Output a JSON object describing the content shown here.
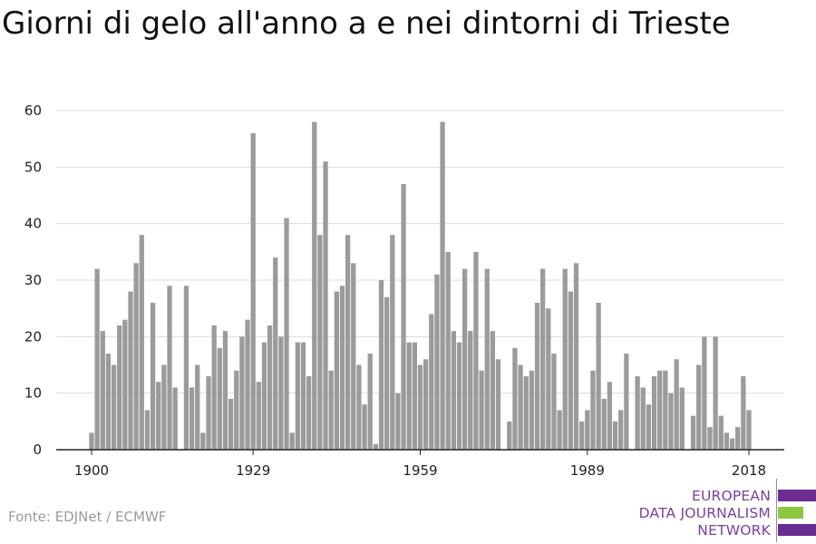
{
  "title": "Giorni di gelo all'anno a e nei dintorni di Trieste",
  "source": "Fonte: EDJNet / ECMWF",
  "logo": {
    "line1": "EUROPEAN",
    "line2": "DATA JOURNALISM",
    "line3": "NETWORK",
    "colors": {
      "purple": "#6b2d91",
      "green": "#8dc63f"
    }
  },
  "chart_data": {
    "type": "bar",
    "bar_color": "#9b9b9b",
    "gridline_color": "#dcdcdc",
    "x_ticks": [
      "1900",
      "1929",
      "1959",
      "1989",
      "2018"
    ],
    "y_ticks": [
      "0",
      "10",
      "20",
      "30",
      "40",
      "50",
      "60"
    ],
    "ylim": [
      0,
      60
    ],
    "xlim": [
      1900,
      2018
    ],
    "x": [
      1900,
      1901,
      1902,
      1903,
      1904,
      1905,
      1906,
      1907,
      1908,
      1909,
      1910,
      1911,
      1912,
      1913,
      1914,
      1915,
      1916,
      1917,
      1918,
      1919,
      1920,
      1921,
      1922,
      1923,
      1924,
      1925,
      1926,
      1927,
      1928,
      1929,
      1930,
      1931,
      1932,
      1933,
      1934,
      1935,
      1936,
      1937,
      1938,
      1939,
      1940,
      1941,
      1942,
      1943,
      1944,
      1945,
      1946,
      1947,
      1948,
      1949,
      1950,
      1951,
      1952,
      1953,
      1954,
      1955,
      1956,
      1957,
      1958,
      1959,
      1960,
      1961,
      1962,
      1963,
      1964,
      1965,
      1966,
      1967,
      1968,
      1969,
      1970,
      1971,
      1972,
      1973,
      1974,
      1975,
      1976,
      1977,
      1978,
      1979,
      1980,
      1981,
      1982,
      1983,
      1984,
      1985,
      1986,
      1987,
      1988,
      1989,
      1990,
      1991,
      1992,
      1993,
      1994,
      1995,
      1996,
      1997,
      1998,
      1999,
      2000,
      2001,
      2002,
      2003,
      2004,
      2005,
      2006,
      2007,
      2008,
      2009,
      2010,
      2011,
      2012,
      2013,
      2014,
      2015,
      2016,
      2017,
      2018
    ],
    "values": [
      3,
      32,
      21,
      17,
      15,
      22,
      23,
      28,
      33,
      38,
      7,
      26,
      12,
      15,
      29,
      11,
      0,
      29,
      11,
      15,
      3,
      13,
      22,
      18,
      21,
      9,
      14,
      20,
      23,
      56,
      12,
      19,
      22,
      34,
      20,
      41,
      3,
      19,
      19,
      13,
      58,
      38,
      51,
      14,
      28,
      29,
      38,
      33,
      15,
      8,
      17,
      1,
      30,
      27,
      38,
      10,
      47,
      19,
      19,
      15,
      16,
      24,
      31,
      58,
      35,
      21,
      19,
      32,
      21,
      35,
      14,
      32,
      21,
      16,
      0,
      5,
      18,
      15,
      13,
      14,
      26,
      32,
      25,
      17,
      7,
      32,
      28,
      33,
      5,
      7,
      14,
      26,
      9,
      12,
      5,
      7,
      17,
      0,
      13,
      11,
      8,
      13,
      14,
      14,
      10,
      16,
      11,
      0,
      6,
      15,
      20,
      4,
      20,
      6,
      3,
      2,
      4,
      13,
      7
    ]
  }
}
